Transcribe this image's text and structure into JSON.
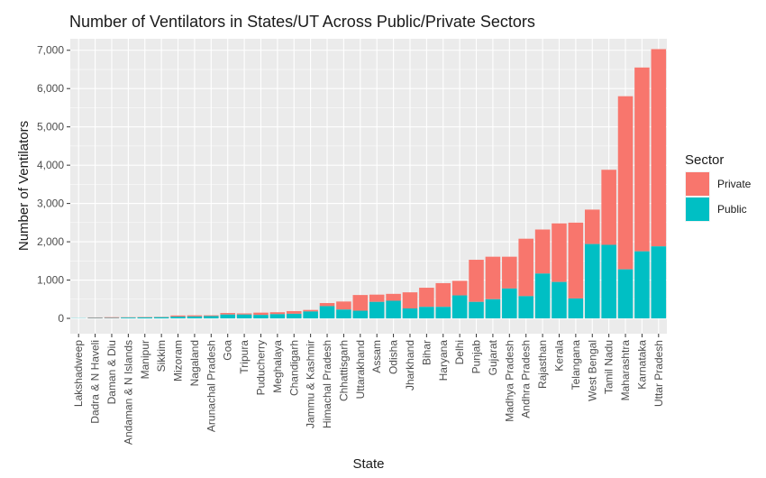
{
  "chart_data": {
    "type": "bar",
    "stacked": true,
    "title": "Number of Ventilators in States/UT Across Public/Private Sectors",
    "xlabel": "State",
    "ylabel": "Number of Ventilators",
    "ylim": [
      -400,
      7300
    ],
    "yticks": [
      0,
      1000,
      2000,
      3000,
      4000,
      5000,
      6000,
      7000
    ],
    "ytick_labels": [
      "0",
      "1,000",
      "2,000",
      "3,000",
      "4,000",
      "5,000",
      "6,000",
      "7,000"
    ],
    "grid": true,
    "legend": {
      "title": "Sector",
      "placement": "right"
    },
    "categories": [
      "Lakshadweep",
      "Dadra & N Haveli",
      "Daman & Diu",
      "Andaman & N Islands",
      "Manipur",
      "Sikkim",
      "Mizoram",
      "Nagaland",
      "Arunachal Pradesh",
      "Goa",
      "Tripura",
      "Puducherry",
      "Meghalaya",
      "Chandigarh",
      "Jammu & Kashmir",
      "Himachal Pradesh",
      "Chhattisgarh",
      "Uttarakhand",
      "Assam",
      "Odisha",
      "Jharkhand",
      "Bihar",
      "Haryana",
      "Delhi",
      "Punjab",
      "Gujarat",
      "Madhya Pradesh",
      "Andhra Pradesh",
      "Rajasthan",
      "Kerala",
      "Telangana",
      "West Bengal",
      "Tamil Nadu",
      "Maharashtra",
      "Karnataka",
      "Uttar Pradesh"
    ],
    "series": [
      {
        "name": "Public",
        "color": "#00BFC4",
        "values": [
          5,
          10,
          10,
          20,
          25,
          30,
          45,
          50,
          60,
          100,
          100,
          90,
          110,
          120,
          180,
          320,
          230,
          200,
          430,
          460,
          260,
          300,
          300,
          600,
          430,
          500,
          780,
          580,
          1170,
          950,
          520,
          1940,
          1920,
          1280,
          1750,
          1880
        ]
      },
      {
        "name": "Private",
        "color": "#F8766D",
        "values": [
          0,
          15,
          20,
          10,
          10,
          10,
          30,
          30,
          20,
          40,
          30,
          60,
          50,
          70,
          40,
          80,
          210,
          410,
          190,
          180,
          420,
          500,
          620,
          380,
          1100,
          1110,
          830,
          1500,
          1150,
          1530,
          1980,
          900,
          1960,
          4520,
          4800,
          5150
        ]
      }
    ]
  }
}
